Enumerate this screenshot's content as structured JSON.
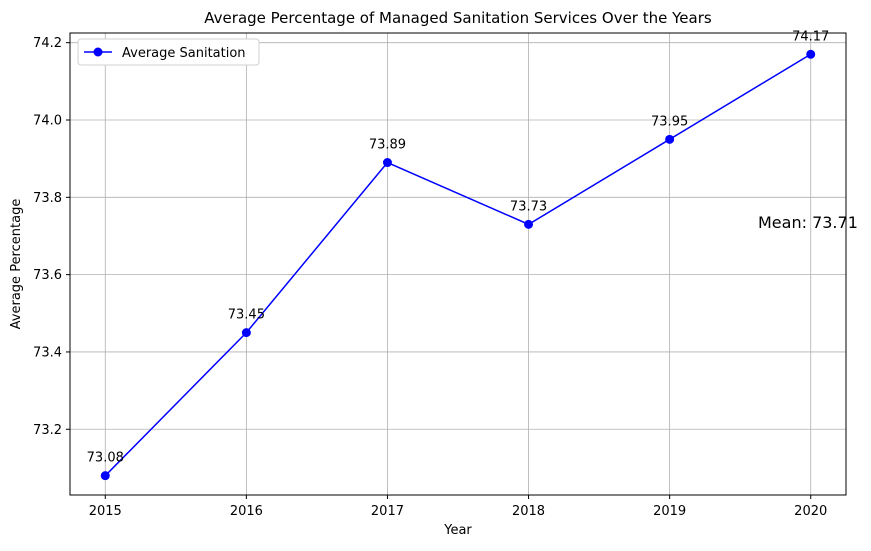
{
  "chart_data": {
    "type": "line",
    "title": "Average Percentage of Managed Sanitation Services Over the Years",
    "xlabel": "Year",
    "ylabel": "Average Percentage",
    "x": [
      2015,
      2016,
      2017,
      2018,
      2019,
      2020
    ],
    "x_tick_labels": [
      "2015",
      "2016",
      "2017",
      "2018",
      "2019",
      "2020"
    ],
    "y_ticks": [
      73.2,
      73.4,
      73.6,
      73.8,
      74.0,
      74.2
    ],
    "y_tick_labels": [
      "73.2",
      "73.4",
      "73.6",
      "73.8",
      "74.0",
      "74.2"
    ],
    "xlim": [
      2014.75,
      2020.25
    ],
    "ylim": [
      73.03,
      74.225
    ],
    "grid": true,
    "legend_position": "upper-left",
    "series": [
      {
        "name": "Average Sanitation",
        "color": "#0000ff",
        "marker": "circle",
        "values": [
          73.08,
          73.45,
          73.89,
          73.73,
          73.95,
          74.17
        ],
        "value_labels": [
          "73.08",
          "73.45",
          "73.89",
          "73.73",
          "73.95",
          "74.17"
        ]
      }
    ],
    "annotation": {
      "text": "Mean: 73.71",
      "x": 2020,
      "y": 73.71
    }
  }
}
